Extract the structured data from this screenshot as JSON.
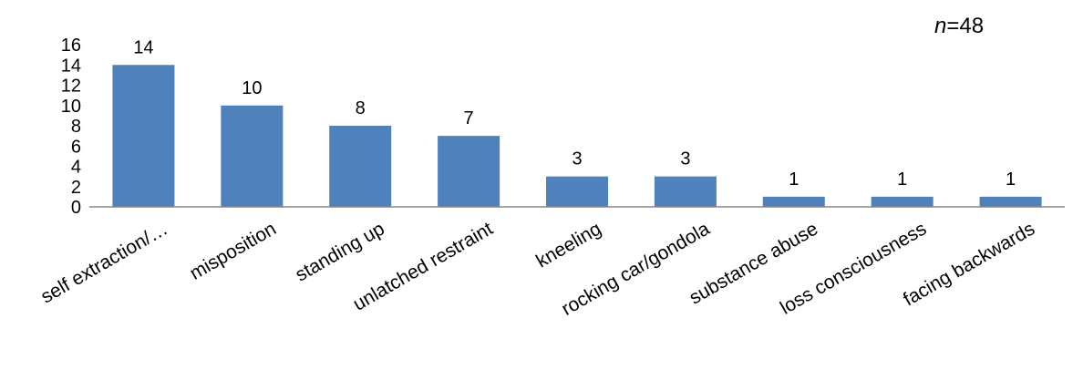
{
  "chart_data": {
    "type": "bar",
    "annotation": {
      "variable": "n",
      "equals": "=48"
    },
    "categories": [
      "self extraction/…",
      "misposition",
      "standing up",
      "unlatched restraint",
      "kneeling",
      "rocking car/gondola",
      "substance abuse",
      "loss consciousness",
      "facing backwards"
    ],
    "values": [
      14,
      10,
      8,
      7,
      3,
      3,
      1,
      1,
      1
    ],
    "data_labels": [
      "14",
      "10",
      "8",
      "7",
      "3",
      "3",
      "1",
      "1",
      "1"
    ],
    "yticks": [
      "0",
      "2",
      "4",
      "6",
      "8",
      "10",
      "12",
      "14",
      "16"
    ],
    "ylim": [
      0,
      16
    ],
    "grid": false,
    "legend": "none",
    "bar_color": "#4F81BD",
    "axis_color": "#868686"
  }
}
